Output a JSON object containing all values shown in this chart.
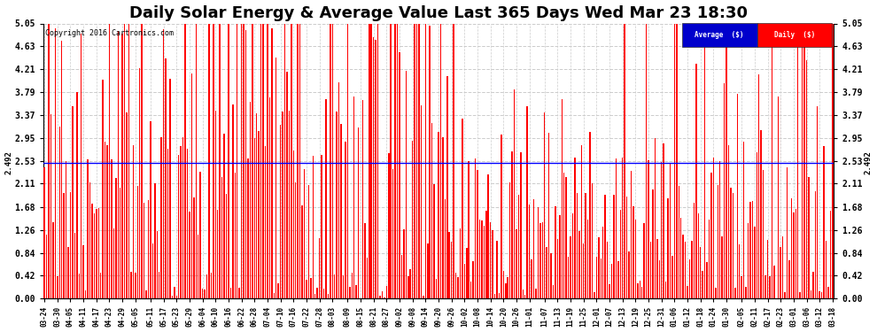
{
  "title": "Daily Solar Energy & Average Value Last 365 Days Wed Mar 23 18:30",
  "copyright": "Copyright 2016 Cartronics.com",
  "average_value": 2.492,
  "average_label": "2.492",
  "yticks": [
    0.0,
    0.42,
    0.84,
    1.26,
    1.68,
    2.11,
    2.53,
    2.95,
    3.37,
    3.79,
    4.21,
    4.63,
    5.05
  ],
  "ymax": 5.05,
  "ymin": 0.0,
  "bar_color": "#FF0000",
  "avg_line_color": "#0000FF",
  "background_color": "#FFFFFF",
  "grid_color": "#AAAAAA",
  "title_fontsize": 13,
  "legend_blue_label": "Average  ($)",
  "legend_red_label": "Daily  ($)",
  "x_labels": [
    "03-24",
    "03-30",
    "04-05",
    "04-11",
    "04-17",
    "04-23",
    "04-29",
    "05-05",
    "05-11",
    "05-17",
    "05-23",
    "05-29",
    "06-04",
    "06-10",
    "06-16",
    "06-22",
    "06-28",
    "07-04",
    "07-10",
    "07-16",
    "07-22",
    "07-28",
    "08-03",
    "08-09",
    "08-15",
    "08-21",
    "08-27",
    "09-02",
    "09-08",
    "09-14",
    "09-20",
    "09-26",
    "10-02",
    "10-08",
    "10-14",
    "10-20",
    "10-26",
    "11-01",
    "11-07",
    "11-13",
    "11-19",
    "11-25",
    "12-01",
    "12-07",
    "12-13",
    "12-19",
    "12-25",
    "12-31",
    "01-06",
    "01-12",
    "01-18",
    "01-24",
    "01-30",
    "02-05",
    "02-11",
    "02-17",
    "02-23",
    "03-01",
    "03-06",
    "03-12",
    "03-18"
  ]
}
